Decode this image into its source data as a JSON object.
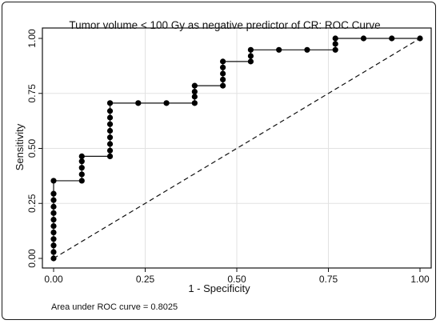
{
  "chart_data": {
    "type": "line",
    "title": "Tumor volume < 100 Gy as negative predictor of CR: ROC Curve",
    "xlabel": "1 - Specificity",
    "ylabel": "Sensitivity",
    "xlim": [
      0,
      1
    ],
    "ylim": [
      0,
      1
    ],
    "xticks": [
      0,
      0.25,
      0.5,
      0.75,
      1
    ],
    "xtick_labels": [
      "0.00",
      "0.25",
      "0.50",
      "0.75",
      "1.00"
    ],
    "yticks": [
      0,
      0.25,
      0.5,
      0.75,
      1
    ],
    "ytick_labels": [
      "0.00",
      "0.25",
      "0.50",
      "0.75",
      "1.00"
    ],
    "grid": true,
    "annotation": "Area under ROC curve = 0.8025",
    "series": [
      {
        "style": "step-markers",
        "points": [
          [
            0,
            0
          ],
          [
            0,
            0.029
          ],
          [
            0,
            0.059
          ],
          [
            0,
            0.088
          ],
          [
            0,
            0.118
          ],
          [
            0,
            0.147
          ],
          [
            0,
            0.176
          ],
          [
            0,
            0.206
          ],
          [
            0,
            0.235
          ],
          [
            0,
            0.265
          ],
          [
            0,
            0.294
          ],
          [
            0,
            0.353
          ],
          [
            0.077,
            0.353
          ],
          [
            0.077,
            0.382
          ],
          [
            0.077,
            0.412
          ],
          [
            0.077,
            0.441
          ],
          [
            0.077,
            0.464
          ],
          [
            0.154,
            0.464
          ],
          [
            0.154,
            0.49
          ],
          [
            0.154,
            0.52
          ],
          [
            0.154,
            0.55
          ],
          [
            0.154,
            0.58
          ],
          [
            0.154,
            0.61
          ],
          [
            0.154,
            0.64
          ],
          [
            0.154,
            0.67
          ],
          [
            0.154,
            0.706
          ],
          [
            0.231,
            0.706
          ],
          [
            0.308,
            0.706
          ],
          [
            0.385,
            0.706
          ],
          [
            0.385,
            0.735
          ],
          [
            0.385,
            0.758
          ],
          [
            0.385,
            0.785
          ],
          [
            0.462,
            0.785
          ],
          [
            0.462,
            0.813
          ],
          [
            0.462,
            0.84
          ],
          [
            0.462,
            0.868
          ],
          [
            0.462,
            0.895
          ],
          [
            0.538,
            0.895
          ],
          [
            0.538,
            0.92
          ],
          [
            0.538,
            0.948
          ],
          [
            0.615,
            0.948
          ],
          [
            0.692,
            0.948
          ],
          [
            0.769,
            0.948
          ],
          [
            0.769,
            0.975
          ],
          [
            0.769,
            1.0
          ],
          [
            0.846,
            1.0
          ],
          [
            0.923,
            1.0
          ],
          [
            1.0,
            1.0
          ]
        ]
      },
      {
        "style": "dashed-reference",
        "points": [
          [
            0,
            0
          ],
          [
            1,
            1
          ]
        ]
      }
    ],
    "colors": {
      "line": "#111111",
      "grid": "#e2e2e2",
      "marker": "#000000"
    }
  }
}
